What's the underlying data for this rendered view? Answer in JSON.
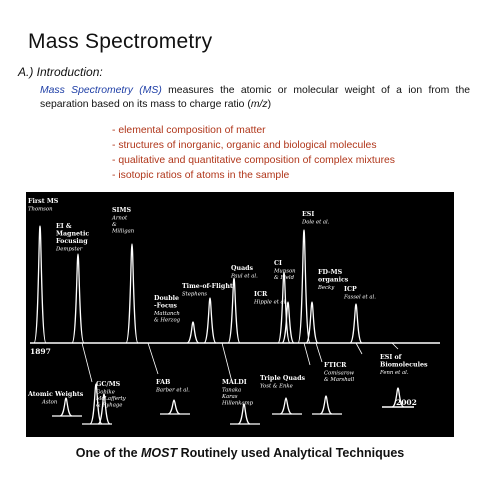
{
  "slide": {
    "title": "Mass Spectrometry",
    "subtitle": "A.) Introduction:",
    "intro": {
      "term": "Mass Spectrometry (MS)",
      "text_before_mz": " measures the atomic or molecular weight of a ion from the separation based on its mass to charge ratio (",
      "mz": "m/z",
      "text_after_mz": ")"
    },
    "bullets": [
      "- elemental composition of matter",
      "- structures of inorganic, organic and biological molecules",
      "- qualitative and quantitative composition of complex mixtures",
      "- isotopic ratios of atoms in the sample"
    ],
    "footer": {
      "before": "One of the ",
      "emphasis": "MOST",
      "after": " Routinely used Analytical Techniques"
    }
  },
  "timeline": {
    "start_year": "1897",
    "end_year": "2002",
    "line_color": "#ffffff",
    "background_color": "#000000",
    "top_events": [
      {
        "title": [
          "First MS"
        ],
        "names": [
          "Thomson"
        ]
      },
      {
        "title": [
          "EI &",
          "Magnetic",
          "Focusing"
        ],
        "names": [
          "Dempster"
        ]
      },
      {
        "title": [
          "SIMS"
        ],
        "names": [
          "Arnot",
          "&",
          "Milligan"
        ]
      },
      {
        "title": [
          "Double",
          "-Focus"
        ],
        "names": [
          "Mattanch",
          "& Herzog"
        ]
      },
      {
        "title": [
          "Time-of-Flight"
        ],
        "names": [
          "Stephens"
        ]
      },
      {
        "title": [
          "Quads"
        ],
        "names": [
          "Paul et al."
        ]
      },
      {
        "title": [
          "CI"
        ],
        "names": [
          "Munson",
          "& Field"
        ]
      },
      {
        "title": [
          "ICR"
        ],
        "names": [
          "Hipple et al."
        ]
      },
      {
        "title": [
          "ESI"
        ],
        "names": [
          "Dole et al."
        ]
      },
      {
        "title": [
          "FD-MS",
          "organics"
        ],
        "names": [
          "Becky"
        ]
      },
      {
        "title": [
          "ICP"
        ],
        "names": [
          "Fassel et al."
        ]
      }
    ],
    "bottom_events": [
      {
        "title": [
          "Atomic Weights"
        ],
        "names": [
          "Aston"
        ]
      },
      {
        "title": [
          "GC/MS"
        ],
        "names": [
          "Gohlke",
          "McLafferty",
          "& Ryhage"
        ]
      },
      {
        "title": [
          "FAB"
        ],
        "names": [
          "Barber et al."
        ]
      },
      {
        "title": [
          "MALDI"
        ],
        "names": [
          "Tanaka",
          "Karas",
          "Hillenkamp"
        ]
      },
      {
        "title": [
          "Triple Quads"
        ],
        "names": [
          "Yost & Enke"
        ]
      },
      {
        "title": [
          "FTICR"
        ],
        "names": [
          "Comisarow",
          "& Marshall"
        ]
      },
      {
        "title": [
          "ESI of",
          "Biomolecules"
        ],
        "names": [
          "Fenn et al."
        ]
      }
    ]
  }
}
